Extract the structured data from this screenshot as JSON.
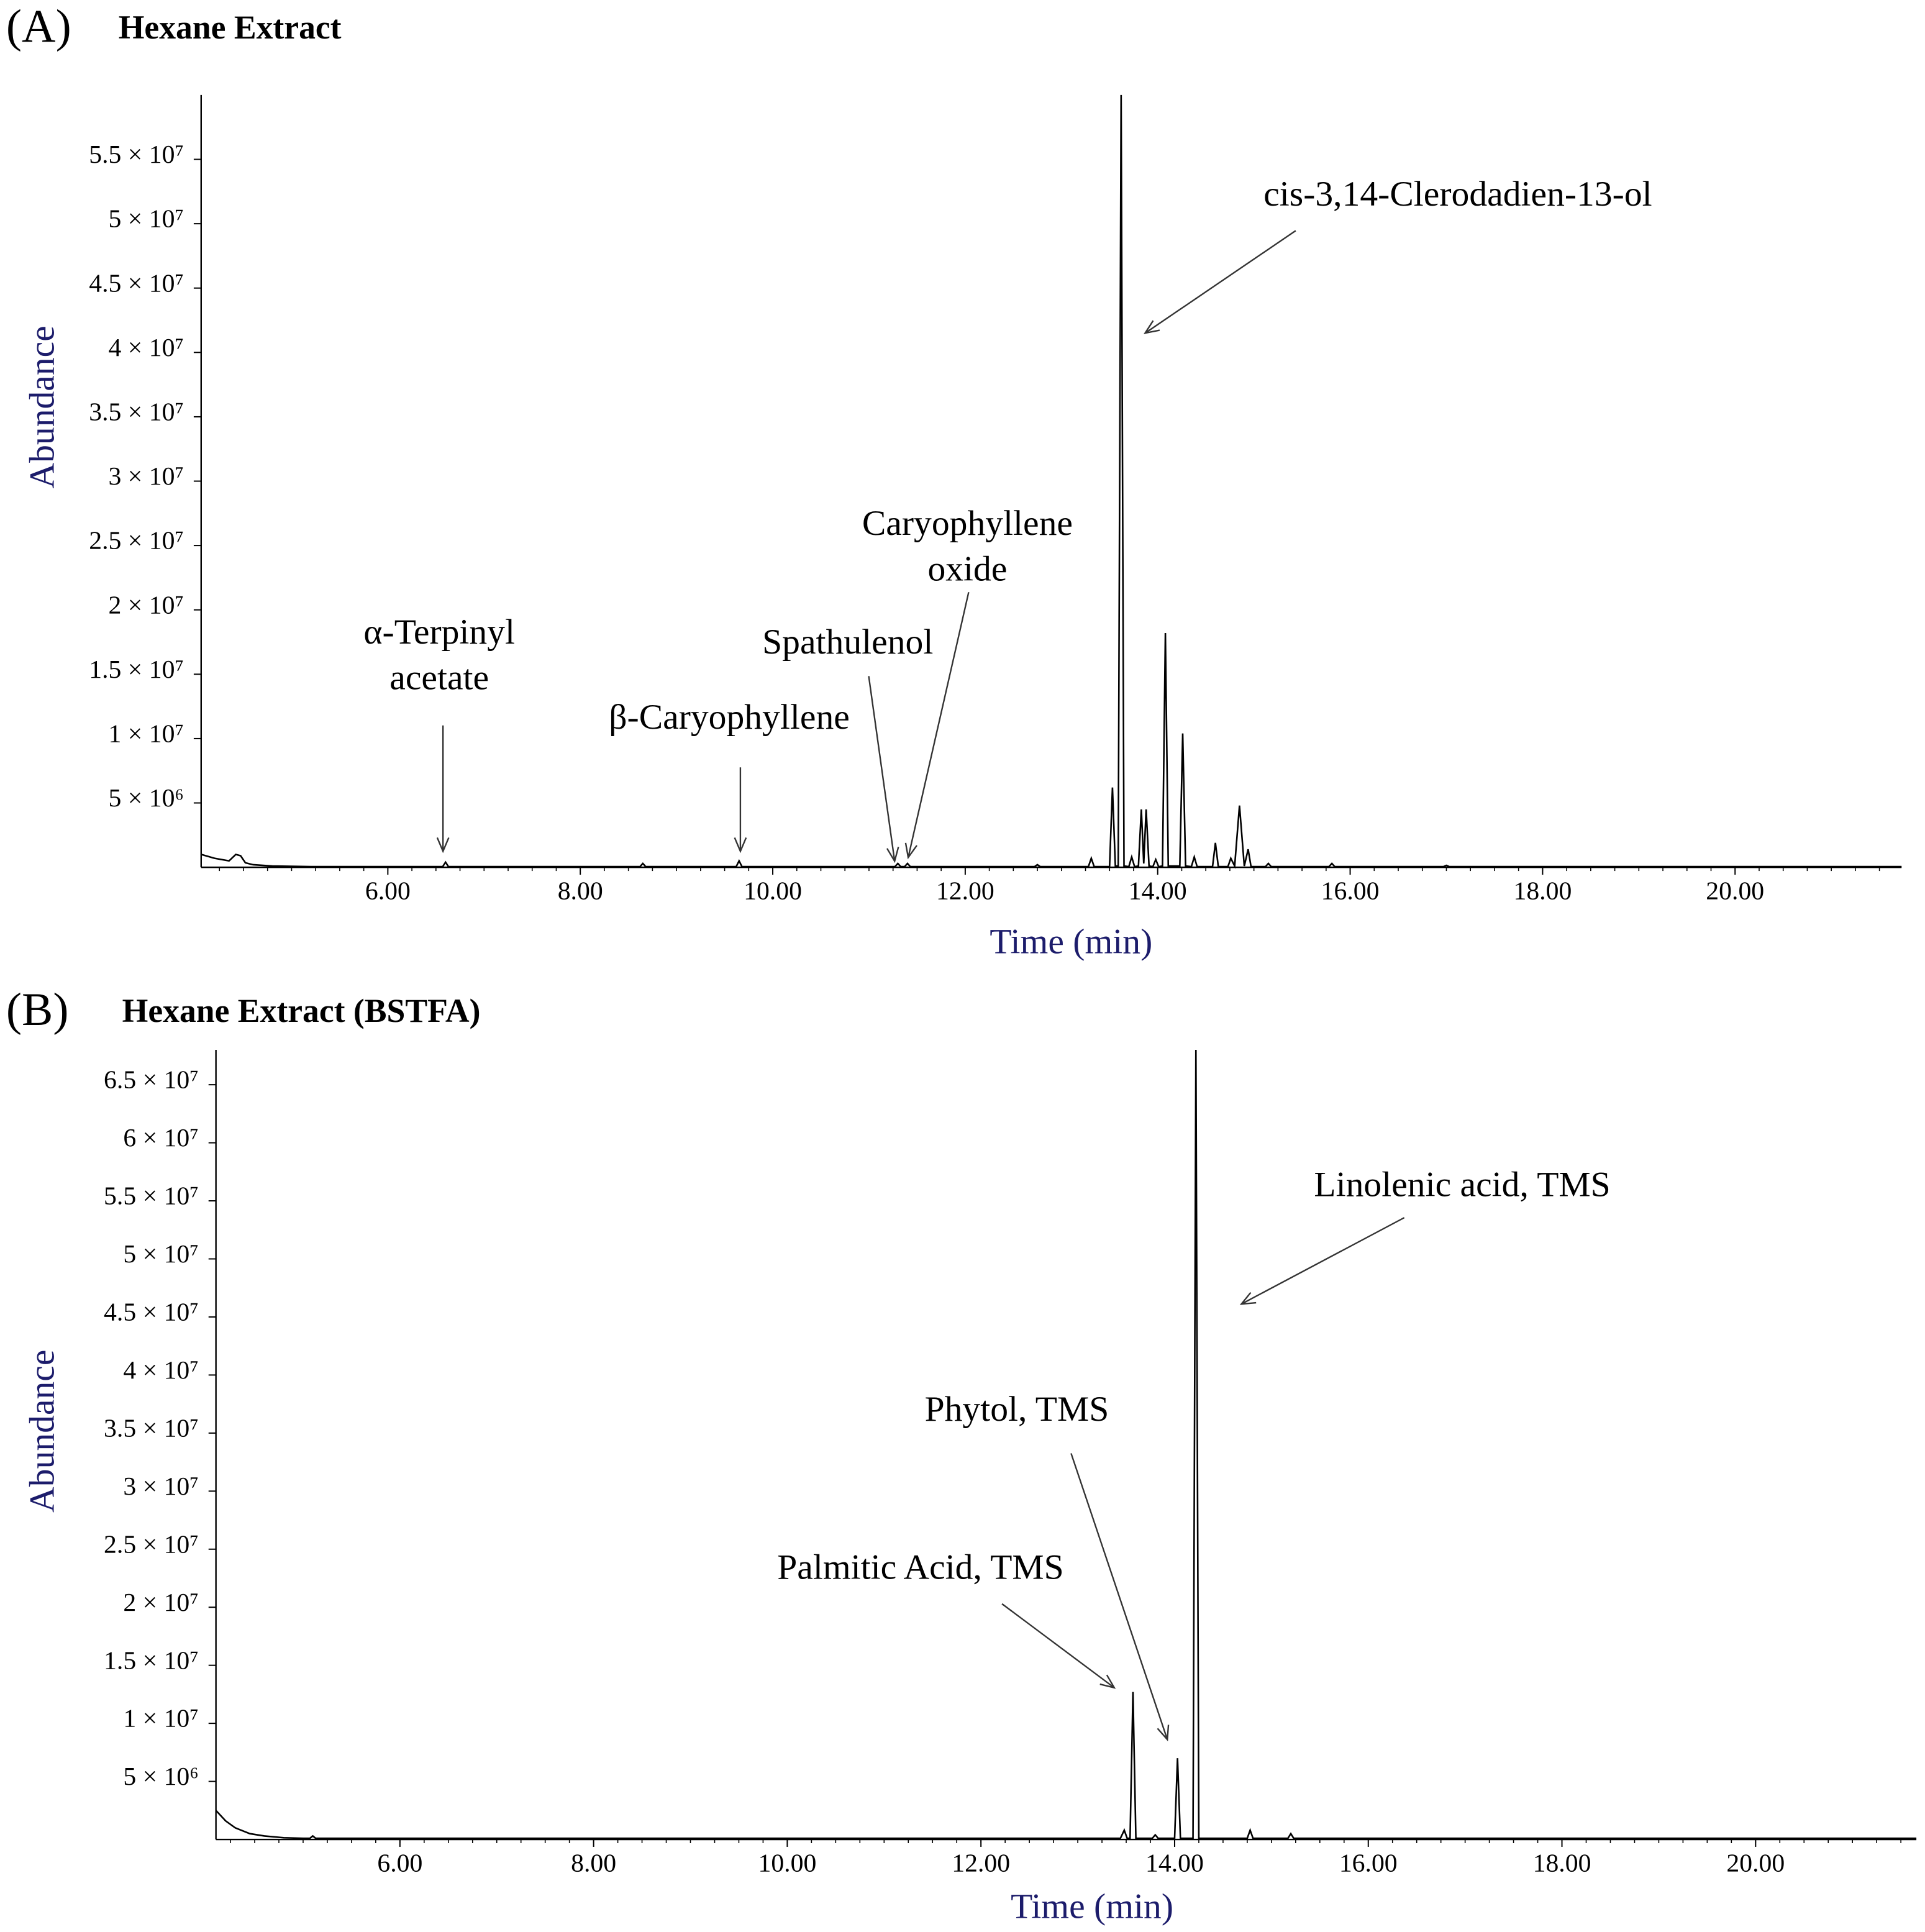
{
  "chart_data": [
    {
      "type": "line",
      "label": "(A)",
      "title": "Hexane Extract",
      "x_label": "Time (min)",
      "y_label": "Abundance",
      "color": "#000000",
      "xlim": [
        4.06,
        21.73
      ],
      "ylim": [
        0,
        60000000.0
      ],
      "xticks": [
        {
          "value": 6,
          "label": "6.00"
        },
        {
          "value": 8,
          "label": "8.00"
        },
        {
          "value": 10,
          "label": "10.00"
        },
        {
          "value": 12,
          "label": "12.00"
        },
        {
          "value": 14,
          "label": "14.00"
        },
        {
          "value": 16,
          "label": "16.00"
        },
        {
          "value": 18,
          "label": "18.00"
        },
        {
          "value": 20,
          "label": "20.00"
        }
      ],
      "yticks": [
        {
          "value": 5000000,
          "label": "5 × 10⁶"
        },
        {
          "value": 10000000,
          "label": "1 × 10⁷"
        },
        {
          "value": 15000000,
          "label": "1.5 × 10⁷"
        },
        {
          "value": 20000000,
          "label": "2 × 10⁷"
        },
        {
          "value": 25000000,
          "label": "2.5 × 10⁷"
        },
        {
          "value": 30000000,
          "label": "3 × 10⁷"
        },
        {
          "value": 35000000,
          "label": "3.5 × 10⁷"
        },
        {
          "value": 40000000,
          "label": "4 × 10⁷"
        },
        {
          "value": 45000000,
          "label": "4.5 × 10⁷"
        },
        {
          "value": 50000000,
          "label": "5 × 10⁷"
        },
        {
          "value": 55000000,
          "label": "5.5 × 10⁷"
        }
      ],
      "x": [
        4.06,
        4.2,
        4.35,
        4.42,
        4.47,
        4.52,
        4.6,
        4.8,
        5.2,
        6.57,
        6.6,
        6.63,
        8.62,
        8.65,
        8.68,
        9.62,
        9.65,
        9.68,
        11.27,
        11.3,
        11.33,
        11.37,
        11.4,
        11.43,
        12.72,
        12.75,
        12.78,
        13.28,
        13.31,
        13.34,
        13.5,
        13.53,
        13.56,
        13.59,
        13.62,
        13.65,
        13.7,
        13.73,
        13.76,
        13.8,
        13.83,
        13.855,
        13.88,
        13.91,
        13.95,
        13.98,
        14.01,
        14.05,
        14.08,
        14.11,
        14.23,
        14.26,
        14.29,
        14.35,
        14.38,
        14.41,
        14.57,
        14.6,
        14.63,
        14.73,
        14.76,
        14.8,
        14.85,
        14.9,
        14.94,
        14.97,
        15.12,
        15.15,
        15.18,
        15.78,
        15.81,
        15.84,
        16.97,
        17.0,
        17.03,
        21.73
      ],
      "values": [
        1000000.0,
        700000.0,
        500000.0,
        1000000.0,
        900000.0,
        350000.0,
        200000.0,
        100000.0,
        50000.0,
        50000.0,
        400000.0,
        50000.0,
        50000.0,
        300000.0,
        50000.0,
        50000.0,
        500000.0,
        50000.0,
        50000.0,
        300000.0,
        50000.0,
        50000.0,
        300000.0,
        50000.0,
        50000.0,
        200000.0,
        50000.0,
        50000.0,
        700000.0,
        50000.0,
        50000.0,
        6200000.0,
        100000.0,
        100000.0,
        60000000.0,
        100000.0,
        50000.0,
        800000.0,
        50000.0,
        100000.0,
        4500000.0,
        300000.0,
        4500000.0,
        100000.0,
        50000.0,
        600000.0,
        50000.0,
        100000.0,
        18200000.0,
        100000.0,
        100000.0,
        10400000.0,
        100000.0,
        50000.0,
        800000.0,
        50000.0,
        50000.0,
        1900000.0,
        50000.0,
        50000.0,
        700000.0,
        100000.0,
        4800000.0,
        100000.0,
        1400000.0,
        50000.0,
        50000.0,
        300000.0,
        50000.0,
        50000.0,
        300000.0,
        50000.0,
        50000.0,
        150000.0,
        50000.0,
        50000.0
      ],
      "annotations": [
        {
          "text": [
            "α-Terpinyl",
            "acetate"
          ]
        },
        {
          "text": [
            "β-Caryophyllene"
          ]
        },
        {
          "text": [
            "Spathulenol"
          ]
        },
        {
          "text": [
            "Caryophyllene",
            "oxide"
          ]
        },
        {
          "text": [
            "cis-3,14-Clerodadien-13-ol"
          ]
        }
      ]
    },
    {
      "type": "line",
      "label": "(B)",
      "title": "Hexane Extract (BSTFA)",
      "x_label": "Time (min)",
      "y_label": "Abundance",
      "color": "#000000",
      "xlim": [
        4.1,
        21.66
      ],
      "ylim": [
        0,
        68000000.0
      ],
      "xticks": [
        {
          "value": 6,
          "label": "6.00"
        },
        {
          "value": 8,
          "label": "8.00"
        },
        {
          "value": 10,
          "label": "10.00"
        },
        {
          "value": 12,
          "label": "12.00"
        },
        {
          "value": 14,
          "label": "14.00"
        },
        {
          "value": 16,
          "label": "16.00"
        },
        {
          "value": 18,
          "label": "18.00"
        },
        {
          "value": 20,
          "label": "20.00"
        }
      ],
      "yticks": [
        {
          "value": 5000000,
          "label": "5 × 10⁶"
        },
        {
          "value": 10000000,
          "label": "1 × 10⁷"
        },
        {
          "value": 15000000,
          "label": "1.5 × 10⁷"
        },
        {
          "value": 20000000,
          "label": "2 × 10⁷"
        },
        {
          "value": 25000000,
          "label": "2.5 × 10⁷"
        },
        {
          "value": 30000000,
          "label": "3 × 10⁷"
        },
        {
          "value": 35000000,
          "label": "3.5 × 10⁷"
        },
        {
          "value": 40000000,
          "label": "4 × 10⁷"
        },
        {
          "value": 45000000,
          "label": "4.5 × 10⁷"
        },
        {
          "value": 50000000,
          "label": "5 × 10⁷"
        },
        {
          "value": 55000000,
          "label": "5.5 × 10⁷"
        },
        {
          "value": 60000000,
          "label": "6 × 10⁷"
        },
        {
          "value": 65000000,
          "label": "6.5 × 10⁷"
        }
      ],
      "x": [
        4.1,
        4.2,
        4.3,
        4.45,
        4.6,
        4.8,
        5.0,
        5.07,
        5.1,
        5.13,
        13.44,
        13.48,
        13.51,
        13.54,
        13.57,
        13.6,
        13.77,
        13.8,
        13.83,
        14.0,
        14.03,
        14.06,
        14.19,
        14.22,
        14.25,
        14.75,
        14.78,
        14.81,
        15.17,
        15.2,
        15.23,
        21.66
      ],
      "values": [
        2500000.0,
        1600000.0,
        1000000.0,
        500000.0,
        300000.0,
        150000.0,
        100000.0,
        100000.0,
        300000.0,
        100000.0,
        100000.0,
        800000.0,
        100000.0,
        100000.0,
        12700000.0,
        100000.0,
        100000.0,
        400000.0,
        100000.0,
        100000.0,
        7000000.0,
        100000.0,
        100000.0,
        68000000.0,
        100000.0,
        100000.0,
        800000.0,
        100000.0,
        100000.0,
        500000.0,
        100000.0,
        100000.0
      ],
      "annotations": [
        {
          "text": [
            "Palmitic Acid, TMS"
          ]
        },
        {
          "text": [
            "Phytol, TMS"
          ]
        },
        {
          "text": [
            "Linolenic acid, TMS"
          ]
        }
      ]
    }
  ]
}
